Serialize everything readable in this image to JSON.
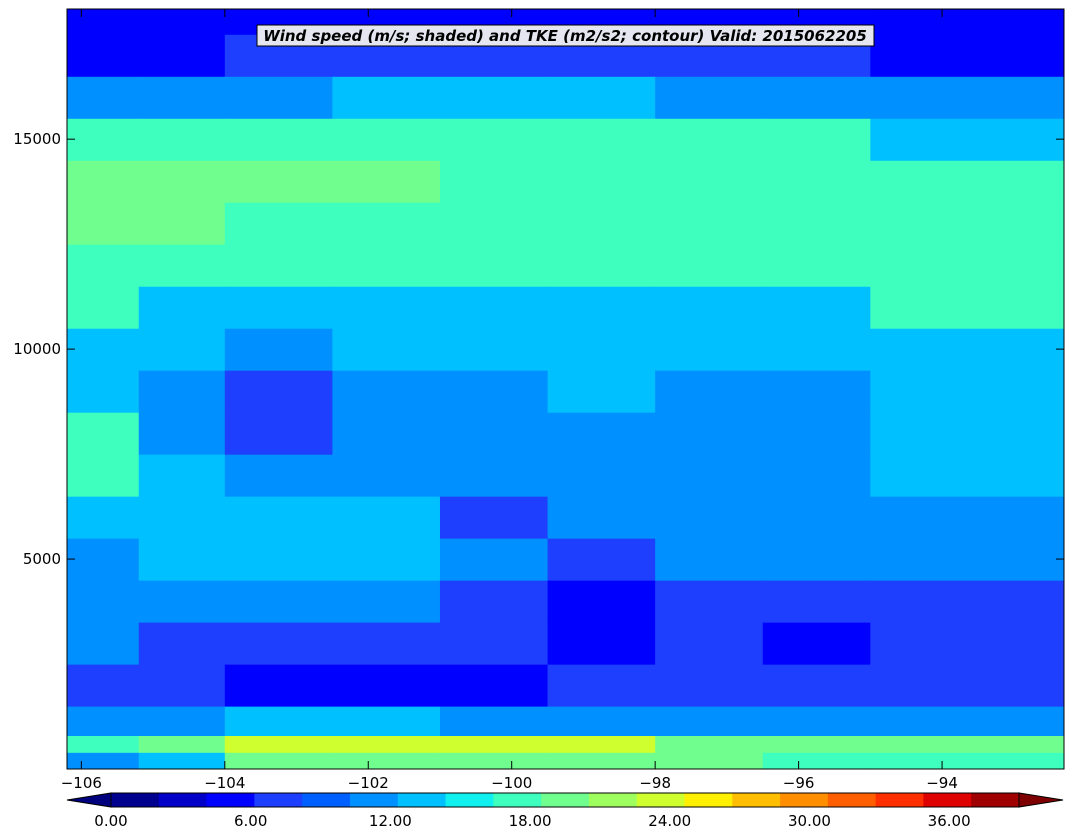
{
  "chart_data": {
    "type": "heatmap",
    "title": "Wind speed (m/s; shaded) and TKE (m2/s2; contour) Valid: 2015062205",
    "xlabel": "",
    "ylabel": "",
    "xlim": [
      -106.2,
      -92.3
    ],
    "ylim": [
      0,
      18100
    ],
    "x_ticks": [
      -106,
      -104,
      -102,
      -100,
      -98,
      -96,
      -94
    ],
    "x_tick_labels": [
      "−106",
      "−104",
      "−102",
      "−100",
      "−98",
      "−96",
      "−94"
    ],
    "y_ticks": [
      5000,
      10000,
      15000
    ],
    "y_tick_labels": [
      "5000",
      "10000",
      "15000"
    ],
    "colorbar": {
      "levels": [
        0,
        3,
        6,
        9,
        12,
        15,
        18,
        21,
        24,
        27,
        30,
        33,
        36,
        39
      ],
      "tick_values": [
        0,
        6,
        12,
        18,
        24,
        30,
        36
      ],
      "tick_labels": [
        "0.00",
        "6.00",
        "12.00",
        "18.00",
        "24.00",
        "30.00",
        "36.00"
      ],
      "extend": "both",
      "colors": [
        "#00008f",
        "#0000c8",
        "#0000ff",
        "#1f3fff",
        "#0060ff",
        "#0090ff",
        "#00c0ff",
        "#0ff0ef",
        "#3fffbf",
        "#70ff8f",
        "#9fff5f",
        "#cfff2f",
        "#ffef00",
        "#ffbf00",
        "#ff8f00",
        "#ff5f00",
        "#ff2f00",
        "#df0000",
        "#9f0000"
      ],
      "under_color": "#00007f",
      "over_color": "#7f0000"
    },
    "legend": "none",
    "grid": false,
    "profile_heights": [
      0,
      400,
      800,
      1500,
      2500,
      3500,
      4500,
      5500,
      6500,
      7500,
      8500,
      9500,
      10500,
      11500,
      12500,
      13500,
      14500,
      15500,
      16500,
      17500,
      18100
    ],
    "profile_regions": [
      {
        "x_range": [
          -106.2,
          -105.2
        ],
        "values": [
          10,
          16,
          10,
          8,
          9,
          10,
          11,
          13,
          15,
          15,
          14,
          14,
          15,
          17,
          18,
          18,
          16,
          10,
          5,
          4,
          3
        ]
      },
      {
        "x_range": [
          -105.2,
          -104.0
        ],
        "values": [
          12,
          18,
          11,
          6,
          8,
          11,
          13,
          14,
          13,
          10,
          10,
          12,
          14,
          16,
          18,
          19,
          17,
          10,
          5,
          4,
          3
        ]
      },
      {
        "x_range": [
          -104.0,
          -102.5
        ],
        "values": [
          18,
          22,
          12,
          5,
          7,
          11,
          13,
          13,
          11,
          8,
          8,
          11,
          14,
          15,
          17,
          18,
          17,
          11,
          6,
          4,
          3
        ]
      },
      {
        "x_range": [
          -102.5,
          -101.0
        ],
        "values": [
          19,
          22,
          12,
          5,
          6,
          10,
          12,
          12,
          11,
          9,
          10,
          12,
          14,
          15,
          17,
          18,
          17,
          12,
          6,
          4,
          3
        ]
      },
      {
        "x_range": [
          -101.0,
          -99.5
        ],
        "values": [
          19,
          21,
          11,
          4,
          6,
          8,
          9,
          8,
          9,
          10,
          11,
          12,
          14,
          15,
          16,
          17,
          16,
          12,
          6,
          4,
          3
        ]
      },
      {
        "x_range": [
          -99.5,
          -98.0
        ],
        "values": [
          19,
          21,
          11,
          6,
          4,
          5,
          8,
          10,
          11,
          10,
          12,
          13,
          14,
          16,
          17,
          17,
          16,
          12,
          6,
          4,
          3
        ]
      },
      {
        "x_range": [
          -98.0,
          -96.5
        ],
        "values": [
          18,
          20,
          11,
          6,
          6,
          6,
          9,
          11,
          10,
          10,
          11,
          12,
          14,
          16,
          17,
          17,
          15,
          11,
          6,
          4,
          3
        ]
      },
      {
        "x_range": [
          -96.5,
          -95.0
        ],
        "values": [
          17,
          19,
          11,
          7,
          5,
          7,
          9,
          10,
          10,
          10,
          11,
          13,
          14,
          16,
          17,
          17,
          15,
          10,
          6,
          4,
          3
        ]
      },
      {
        "x_range": [
          -95.0,
          -92.3
        ],
        "values": [
          16,
          18,
          11,
          7,
          6,
          8,
          9,
          11,
          12,
          12,
          13,
          14,
          15,
          17,
          17,
          16,
          14,
          10,
          5,
          3,
          2
        ]
      }
    ]
  }
}
